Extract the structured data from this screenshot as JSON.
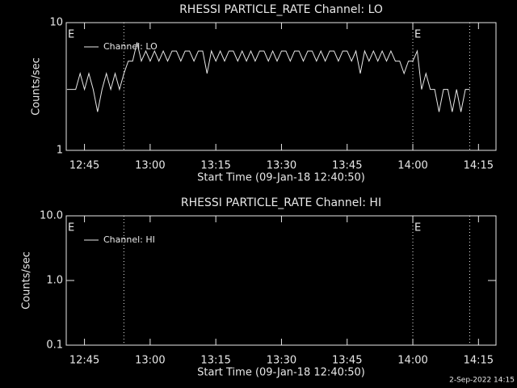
{
  "chart_data": [
    {
      "type": "line",
      "title": "RHESSI PARTICLE_RATE Channel: LO",
      "xlabel": "Start Time (09-Jan-18 12:40:50)",
      "ylabel": "Counts/sec",
      "log_y": true,
      "legend": "top-left",
      "xlim": [
        "12:40:50",
        "14:19"
      ],
      "xticks": [
        "12:45",
        "13:00",
        "13:15",
        "13:30",
        "13:45",
        "14:00",
        "14:15"
      ],
      "ylim": [
        1,
        10
      ],
      "yticks": [
        1,
        10
      ],
      "event_lines": [
        "12:54",
        "14:00",
        "14:13"
      ],
      "annotations": [
        {
          "x": "12:40:50",
          "text": "E"
        },
        {
          "x": "14:00",
          "text": "E"
        }
      ],
      "x": [
        "12:41",
        "12:42",
        "12:43",
        "12:44",
        "12:45",
        "12:46",
        "12:47",
        "12:48",
        "12:49",
        "12:50",
        "12:51",
        "12:52",
        "12:53",
        "12:54",
        "12:55",
        "12:56",
        "12:57",
        "12:58",
        "12:59",
        "13:00",
        "13:01",
        "13:02",
        "13:03",
        "13:04",
        "13:05",
        "13:06",
        "13:07",
        "13:08",
        "13:09",
        "13:10",
        "13:11",
        "13:12",
        "13:13",
        "13:14",
        "13:15",
        "13:16",
        "13:17",
        "13:18",
        "13:19",
        "13:20",
        "13:21",
        "13:22",
        "13:23",
        "13:24",
        "13:25",
        "13:26",
        "13:27",
        "13:28",
        "13:29",
        "13:30",
        "13:31",
        "13:32",
        "13:33",
        "13:34",
        "13:35",
        "13:36",
        "13:37",
        "13:38",
        "13:39",
        "13:40",
        "13:41",
        "13:42",
        "13:43",
        "13:44",
        "13:45",
        "13:46",
        "13:47",
        "13:48",
        "13:49",
        "13:50",
        "13:51",
        "13:52",
        "13:53",
        "13:54",
        "13:55",
        "13:56",
        "13:57",
        "13:58",
        "13:59",
        "14:00",
        "14:01",
        "14:02",
        "14:03",
        "14:04",
        "14:05",
        "14:06",
        "14:07",
        "14:08",
        "14:09",
        "14:10",
        "14:11",
        "14:12",
        "14:13"
      ],
      "series": [
        {
          "name": "Channel: LO",
          "color": "#e8e8e8",
          "values": [
            3,
            3,
            3,
            4,
            3,
            4,
            3,
            2,
            3,
            4,
            3,
            4,
            3,
            4,
            5,
            5,
            7,
            5,
            6,
            5,
            6,
            5,
            6,
            5,
            6,
            6,
            5,
            6,
            6,
            5,
            6,
            6,
            4,
            6,
            5,
            6,
            5,
            6,
            6,
            5,
            6,
            5,
            6,
            5,
            6,
            6,
            5,
            6,
            5,
            6,
            6,
            5,
            6,
            6,
            5,
            6,
            6,
            5,
            6,
            5,
            6,
            6,
            5,
            6,
            6,
            5,
            6,
            4,
            6,
            5,
            6,
            5,
            6,
            5,
            6,
            5,
            5,
            4,
            5,
            5,
            6,
            3,
            4,
            3,
            3,
            2,
            3,
            3,
            2,
            3,
            2,
            3,
            3
          ]
        }
      ]
    },
    {
      "type": "line",
      "title": "RHESSI PARTICLE_RATE Channel: HI",
      "xlabel": "Start Time (09-Jan-18 12:40:50)",
      "ylabel": "Counts/sec",
      "log_y": true,
      "legend": "top-left",
      "xlim": [
        "12:40:50",
        "14:19"
      ],
      "xticks": [
        "12:45",
        "13:00",
        "13:15",
        "13:30",
        "13:45",
        "14:00",
        "14:15"
      ],
      "ylim": [
        0.1,
        10
      ],
      "yticks": [
        0.1,
        {
          "value": 1,
          "label": "1.0"
        },
        {
          "value": 10,
          "label": "10.0"
        }
      ],
      "event_lines": [
        "12:54",
        "14:00",
        "14:13"
      ],
      "annotations": [
        {
          "x": "12:40:50",
          "text": "E"
        },
        {
          "x": "14:00",
          "text": "E"
        }
      ],
      "x": [],
      "series": [
        {
          "name": "Channel: HI",
          "color": "#e8e8e8",
          "values": []
        }
      ]
    }
  ],
  "footer": "2-Sep-2022 14:15"
}
